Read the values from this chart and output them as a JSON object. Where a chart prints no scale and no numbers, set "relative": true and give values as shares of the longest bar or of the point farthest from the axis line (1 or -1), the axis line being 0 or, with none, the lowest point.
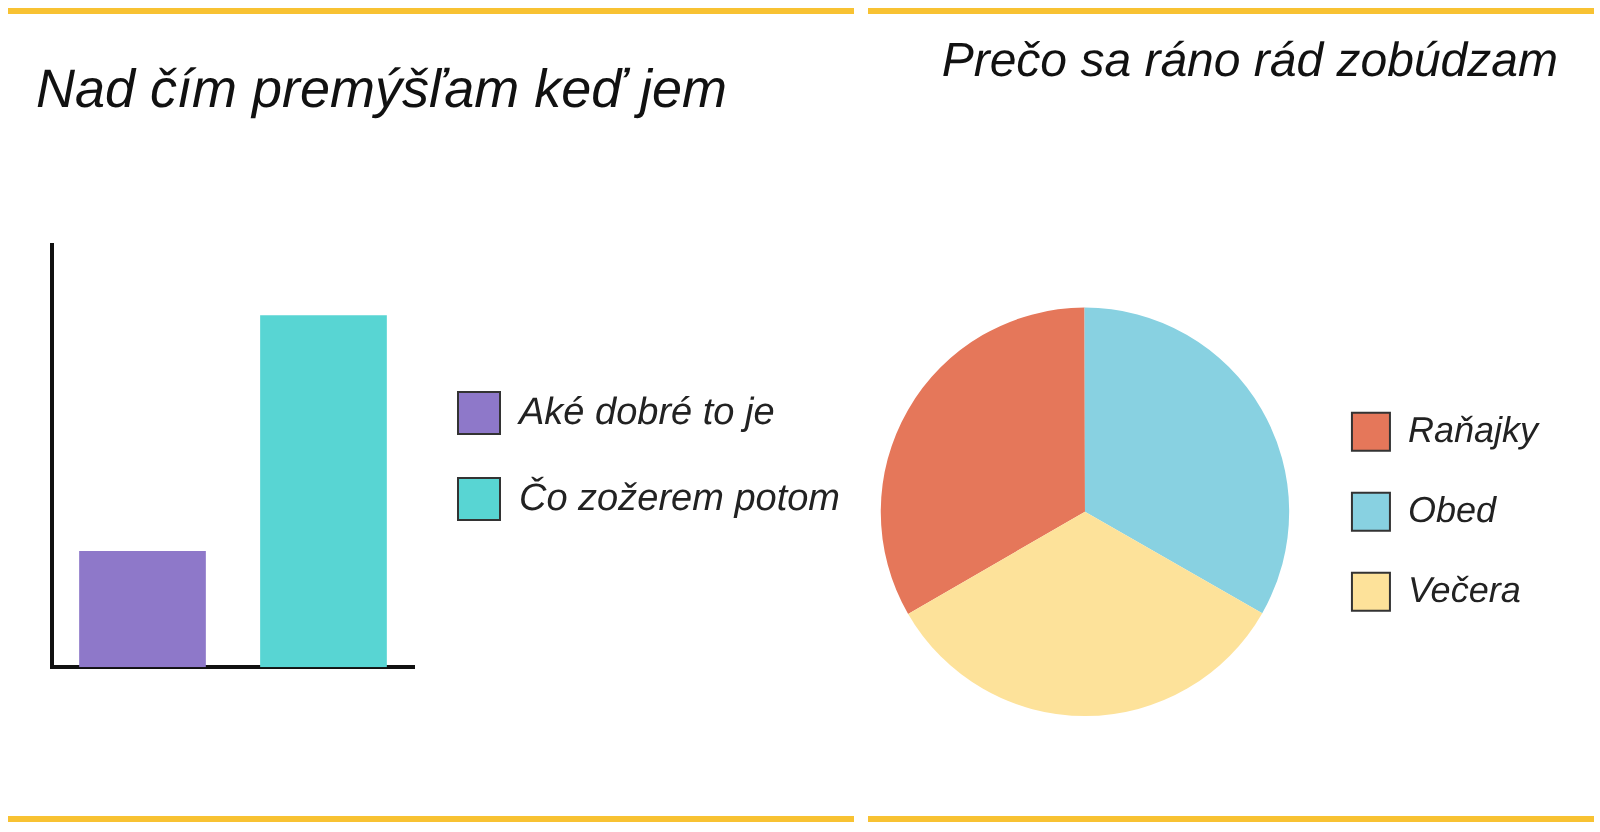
{
  "chart_data": [
    {
      "type": "bar",
      "title": "Nad čím premýšľam keď jem",
      "categories": [
        null
      ],
      "series": [
        {
          "name": "Aké dobré to je",
          "color": "#8e78c9",
          "values": [
            0.33
          ]
        },
        {
          "name": "Čo zožerem potom",
          "color": "#58d5d3",
          "values": [
            1
          ]
        }
      ],
      "relative": true,
      "legend": "right"
    },
    {
      "type": "pie",
      "title": "Prečo sa ráno rád zobúdzam",
      "categories": [
        "Raňajky",
        "Obed",
        "Večera"
      ],
      "values": [
        33.3,
        33.3,
        33.4
      ],
      "colors": [
        "#e5775a",
        "#88d1e1",
        "#fde29a"
      ],
      "legend": "right"
    }
  ]
}
